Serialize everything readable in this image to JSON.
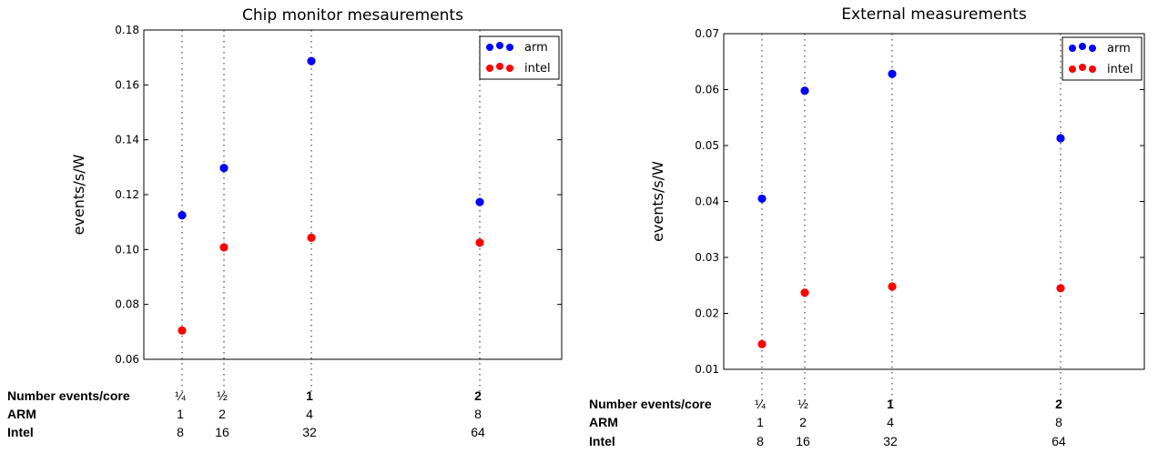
{
  "chart_data": [
    {
      "type": "scatter",
      "title": "Chip monitor mesaurements",
      "xlabel": "",
      "ylabel": "events/s/W",
      "ylim": [
        0.06,
        0.18
      ],
      "yticks": [
        "0.06",
        "0.08",
        "0.10",
        "0.12",
        "0.14",
        "0.16",
        "0.18"
      ],
      "x": [
        0.25,
        0.5,
        1,
        2
      ],
      "series": [
        {
          "name": "arm",
          "color": "#0000ff",
          "values": [
            0.1125,
            0.1297,
            0.1687,
            0.1173
          ]
        },
        {
          "name": "intel",
          "color": "#ff0000",
          "values": [
            0.0705,
            0.1008,
            0.1043,
            0.1025
          ]
        }
      ],
      "legend": "top-right",
      "grid": "vertical dotted lines at x positions",
      "table": {
        "rows": [
          {
            "label": "Number events/core",
            "bold": true,
            "cells": [
              "¼",
              "½",
              "1",
              "2"
            ]
          },
          {
            "label": "ARM",
            "bold": true,
            "cells": [
              "1",
              "2",
              "4",
              "8"
            ]
          },
          {
            "label": "Intel",
            "bold": true,
            "cells": [
              "8",
              "16",
              "32",
              "64"
            ]
          }
        ]
      }
    },
    {
      "type": "scatter",
      "title": "External measurements",
      "xlabel": "",
      "ylabel": "events/s/W",
      "ylim": [
        0.01,
        0.07
      ],
      "yticks": [
        "0.01",
        "0.02",
        "0.03",
        "0.04",
        "0.05",
        "0.06",
        "0.07"
      ],
      "x": [
        0.25,
        0.5,
        1,
        2
      ],
      "series": [
        {
          "name": "arm",
          "color": "#0000ff",
          "values": [
            0.0405,
            0.0598,
            0.0628,
            0.0513
          ]
        },
        {
          "name": "intel",
          "color": "#ff0000",
          "values": [
            0.0145,
            0.0237,
            0.0248,
            0.0245
          ]
        }
      ],
      "legend": "top-right",
      "grid": "vertical dotted lines at x positions",
      "table": {
        "rows": [
          {
            "label": "Number events/core",
            "bold": true,
            "cells": [
              "¼",
              "½",
              "1",
              "2"
            ]
          },
          {
            "label": "ARM",
            "bold": true,
            "cells": [
              "1",
              "2",
              "4",
              "8"
            ]
          },
          {
            "label": "Intel",
            "bold": true,
            "cells": [
              "8",
              "16",
              "32",
              "64"
            ]
          }
        ]
      }
    }
  ]
}
